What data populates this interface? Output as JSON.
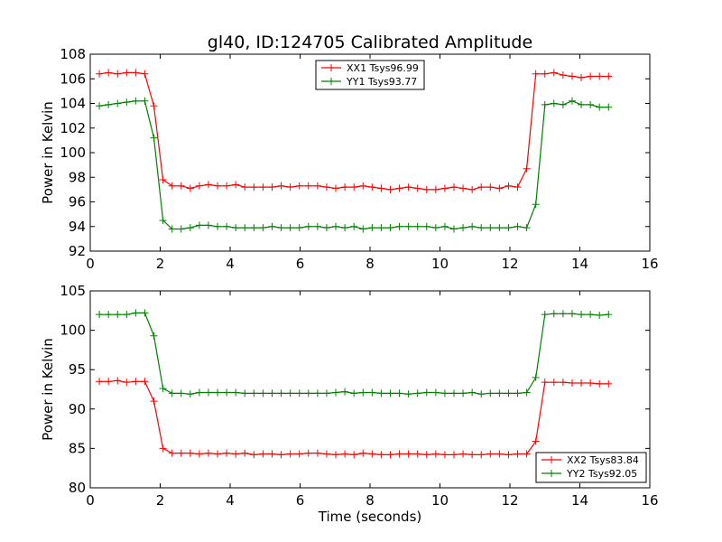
{
  "title": "gl40, ID:124705 Calibrated Amplitude",
  "chart_data": [
    {
      "type": "line",
      "title": "gl40, ID:124705 Calibrated Amplitude",
      "xlabel": "",
      "ylabel": "Power in Kelvin",
      "xlim": [
        0,
        16
      ],
      "ylim": [
        92,
        108
      ],
      "xticks": [
        0,
        2,
        4,
        6,
        8,
        10,
        12,
        14,
        16
      ],
      "yticks": [
        92,
        94,
        96,
        98,
        100,
        102,
        104,
        106,
        108
      ],
      "grid": false,
      "legend": "top-center",
      "x": [
        0.26,
        0.52,
        0.78,
        1.04,
        1.3,
        1.56,
        1.82,
        2.08,
        2.34,
        2.6,
        2.86,
        3.12,
        3.38,
        3.64,
        3.9,
        4.16,
        4.42,
        4.68,
        4.94,
        5.2,
        5.46,
        5.72,
        5.98,
        6.24,
        6.5,
        6.76,
        7.02,
        7.28,
        7.54,
        7.8,
        8.06,
        8.32,
        8.58,
        8.84,
        9.1,
        9.36,
        9.62,
        9.88,
        10.14,
        10.4,
        10.66,
        10.92,
        11.18,
        11.44,
        11.7,
        11.96,
        12.22,
        12.48,
        12.74,
        13.0,
        13.26,
        13.52,
        13.78,
        14.04,
        14.3,
        14.56,
        14.82
      ],
      "series": [
        {
          "name": "XX1 Tsys96.99",
          "color": "#ff0000",
          "values": [
            106.4,
            106.5,
            106.4,
            106.5,
            106.5,
            106.4,
            103.8,
            97.8,
            97.3,
            97.3,
            97.1,
            97.3,
            97.4,
            97.3,
            97.3,
            97.4,
            97.2,
            97.2,
            97.2,
            97.2,
            97.3,
            97.2,
            97.3,
            97.3,
            97.3,
            97.2,
            97.1,
            97.2,
            97.2,
            97.3,
            97.2,
            97.1,
            97.0,
            97.1,
            97.2,
            97.1,
            97.0,
            97.0,
            97.1,
            97.2,
            97.1,
            97.0,
            97.2,
            97.2,
            97.1,
            97.3,
            97.2,
            98.7,
            106.4,
            106.4,
            106.5,
            106.3,
            106.2,
            106.1,
            106.2,
            106.2,
            106.2
          ]
        },
        {
          "name": "YY1 Tsys93.77",
          "color": "#008000",
          "values": [
            103.8,
            103.9,
            104.0,
            104.1,
            104.2,
            104.2,
            101.2,
            94.5,
            93.8,
            93.8,
            93.9,
            94.1,
            94.1,
            94.0,
            94.0,
            93.9,
            93.9,
            93.9,
            93.9,
            94.0,
            93.9,
            93.9,
            93.9,
            94.0,
            94.0,
            93.9,
            94.0,
            93.9,
            94.0,
            93.8,
            93.9,
            93.9,
            93.9,
            94.0,
            94.0,
            94.0,
            94.0,
            93.9,
            94.0,
            93.8,
            93.9,
            94.0,
            93.9,
            93.9,
            93.9,
            93.9,
            94.0,
            93.9,
            95.8,
            103.9,
            104.0,
            103.9,
            104.2,
            103.9,
            103.9,
            103.7,
            103.7
          ]
        }
      ]
    },
    {
      "type": "line",
      "title": "",
      "xlabel": "Time (seconds)",
      "ylabel": "Power in Kelvin",
      "xlim": [
        0,
        16
      ],
      "ylim": [
        80,
        105
      ],
      "xticks": [
        0,
        2,
        4,
        6,
        8,
        10,
        12,
        14,
        16
      ],
      "yticks": [
        80,
        85,
        90,
        95,
        100,
        105
      ],
      "grid": false,
      "legend": "bottom-right",
      "x": [
        0.26,
        0.52,
        0.78,
        1.04,
        1.3,
        1.56,
        1.82,
        2.08,
        2.34,
        2.6,
        2.86,
        3.12,
        3.38,
        3.64,
        3.9,
        4.16,
        4.42,
        4.68,
        4.94,
        5.2,
        5.46,
        5.72,
        5.98,
        6.24,
        6.5,
        6.76,
        7.02,
        7.28,
        7.54,
        7.8,
        8.06,
        8.32,
        8.58,
        8.84,
        9.1,
        9.36,
        9.62,
        9.88,
        10.14,
        10.4,
        10.66,
        10.92,
        11.18,
        11.44,
        11.7,
        11.96,
        12.22,
        12.48,
        12.74,
        13.0,
        13.26,
        13.52,
        13.78,
        14.04,
        14.3,
        14.56,
        14.82
      ],
      "series": [
        {
          "name": "XX2 Tsys83.84",
          "color": "#ff0000",
          "values": [
            93.5,
            93.5,
            93.6,
            93.4,
            93.5,
            93.5,
            91.0,
            85.0,
            84.4,
            84.4,
            84.4,
            84.3,
            84.4,
            84.3,
            84.4,
            84.3,
            84.4,
            84.2,
            84.3,
            84.3,
            84.2,
            84.3,
            84.3,
            84.4,
            84.4,
            84.3,
            84.2,
            84.3,
            84.2,
            84.4,
            84.3,
            84.2,
            84.2,
            84.3,
            84.3,
            84.3,
            84.2,
            84.3,
            84.2,
            84.2,
            84.3,
            84.2,
            84.2,
            84.3,
            84.3,
            84.2,
            84.3,
            84.3,
            85.9,
            93.4,
            93.4,
            93.4,
            93.3,
            93.3,
            93.3,
            93.2,
            93.2
          ]
        },
        {
          "name": "YY2 Tsys92.05",
          "color": "#008000",
          "values": [
            102.0,
            102.0,
            102.0,
            102.0,
            102.2,
            102.2,
            99.3,
            92.6,
            92.0,
            92.0,
            91.9,
            92.1,
            92.1,
            92.1,
            92.1,
            92.1,
            92.0,
            92.0,
            92.0,
            92.0,
            92.0,
            92.0,
            92.0,
            92.0,
            92.0,
            92.0,
            92.1,
            92.2,
            92.0,
            92.1,
            92.1,
            92.0,
            92.0,
            92.0,
            91.9,
            92.0,
            92.1,
            92.1,
            92.0,
            92.0,
            92.0,
            92.1,
            91.9,
            92.0,
            92.0,
            92.0,
            92.0,
            92.1,
            94.0,
            102.0,
            102.1,
            102.1,
            102.1,
            102.0,
            102.0,
            101.9,
            102.0
          ]
        }
      ]
    }
  ]
}
